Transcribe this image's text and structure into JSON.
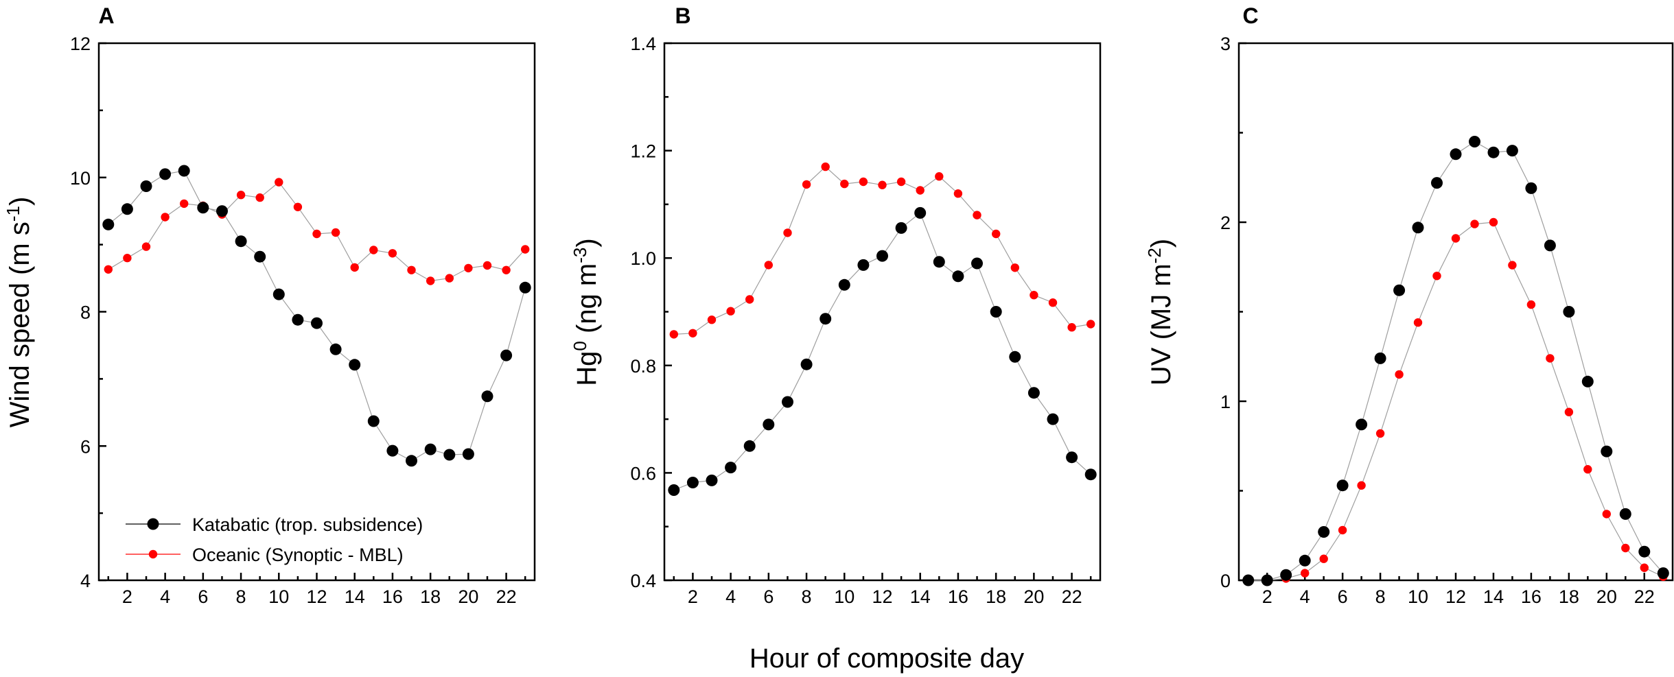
{
  "figure": {
    "shared_xlabel": "Hour of composite day"
  },
  "legend": {
    "entries": [
      {
        "label": "Katabatic (trop. subsidence)",
        "color": "#000000"
      },
      {
        "label": "Oceanic (Synoptic - MBL)",
        "color": "#ff0000"
      }
    ]
  },
  "chart_data": [
    {
      "panel": "A",
      "type": "line",
      "ylabel_main": "Wind speed (m s",
      "ylabel_sup": "-1",
      "ylabel_end": ")",
      "xlim": [
        0.5,
        23.5
      ],
      "ylim": [
        4,
        12
      ],
      "yticks": [
        4,
        6,
        8,
        10,
        12
      ],
      "yticks_labels": [
        "4",
        "6",
        "8",
        "10",
        "12"
      ],
      "xticks": [
        2,
        4,
        6,
        8,
        10,
        12,
        14,
        16,
        18,
        20,
        22
      ],
      "xticks_labels": [
        "2",
        "4",
        "6",
        "8",
        "10",
        "12",
        "14",
        "16",
        "18",
        "20",
        "22"
      ],
      "x": [
        1,
        2,
        3,
        4,
        5,
        6,
        7,
        8,
        9,
        10,
        11,
        12,
        13,
        14,
        15,
        16,
        17,
        18,
        19,
        20,
        21,
        22,
        23
      ],
      "series": [
        {
          "name": "Katabatic (trop. subsidence)",
          "color": "#000000",
          "marker": "large",
          "values": [
            9.3,
            9.53,
            9.87,
            10.05,
            10.1,
            9.55,
            9.5,
            9.05,
            8.82,
            8.26,
            7.88,
            7.83,
            7.44,
            7.21,
            6.37,
            5.93,
            5.78,
            5.95,
            5.87,
            5.88,
            6.74,
            7.35,
            8.36
          ]
        },
        {
          "name": "Oceanic (Synoptic - MBL)",
          "color": "#ff0000",
          "marker": "small",
          "values": [
            8.63,
            8.8,
            8.97,
            9.41,
            9.61,
            9.58,
            9.45,
            9.74,
            9.7,
            9.93,
            9.56,
            9.16,
            9.18,
            8.66,
            8.92,
            8.87,
            8.62,
            8.46,
            8.5,
            8.65,
            8.69,
            8.62,
            8.93
          ]
        }
      ]
    },
    {
      "panel": "B",
      "type": "line",
      "ylabel_main": "Hg",
      "ylabel_sup": "0",
      "ylabel_mid": " (ng m",
      "ylabel_sup2": "-3",
      "ylabel_end": ")",
      "xlim": [
        0.5,
        23.5
      ],
      "ylim": [
        0.4,
        1.4
      ],
      "yticks": [
        0.4,
        0.6,
        0.8,
        1.0,
        1.2,
        1.4
      ],
      "yticks_labels": [
        "0.4",
        "0.6",
        "0.8",
        "1.0",
        "1.2",
        "1.4"
      ],
      "xticks": [
        2,
        4,
        6,
        8,
        10,
        12,
        14,
        16,
        18,
        20,
        22
      ],
      "xticks_labels": [
        "2",
        "4",
        "6",
        "8",
        "10",
        "12",
        "14",
        "16",
        "18",
        "20",
        "22"
      ],
      "x": [
        1,
        2,
        3,
        4,
        5,
        6,
        7,
        8,
        9,
        10,
        11,
        12,
        13,
        14,
        15,
        16,
        17,
        18,
        19,
        20,
        21,
        22,
        23
      ],
      "series": [
        {
          "name": "Katabatic (trop. subsidence)",
          "color": "#000000",
          "marker": "large",
          "values": [
            0.568,
            0.582,
            0.586,
            0.61,
            0.65,
            0.69,
            0.732,
            0.802,
            0.887,
            0.95,
            0.987,
            1.004,
            1.056,
            1.084,
            0.993,
            0.966,
            0.99,
            0.9,
            0.816,
            0.749,
            0.7,
            0.629,
            0.597
          ]
        },
        {
          "name": "Oceanic (Synoptic - MBL)",
          "color": "#ff0000",
          "marker": "small",
          "values": [
            0.858,
            0.86,
            0.885,
            0.901,
            0.923,
            0.987,
            1.047,
            1.137,
            1.17,
            1.138,
            1.142,
            1.136,
            1.142,
            1.126,
            1.152,
            1.12,
            1.08,
            1.045,
            0.982,
            0.931,
            0.917,
            0.871,
            0.877
          ]
        }
      ]
    },
    {
      "panel": "C",
      "type": "line",
      "ylabel_main": "UV (MJ m",
      "ylabel_sup": "-2",
      "ylabel_end": ")",
      "xlim": [
        0.5,
        23.5
      ],
      "ylim": [
        0,
        3
      ],
      "yticks": [
        0,
        1,
        2,
        3
      ],
      "yticks_labels": [
        "0",
        "1",
        "2",
        "3"
      ],
      "xticks": [
        2,
        4,
        6,
        8,
        10,
        12,
        14,
        16,
        18,
        20,
        22
      ],
      "xticks_labels": [
        "2",
        "4",
        "6",
        "8",
        "10",
        "12",
        "14",
        "16",
        "18",
        "20",
        "22"
      ],
      "x": [
        1,
        2,
        3,
        4,
        5,
        6,
        7,
        8,
        9,
        10,
        11,
        12,
        13,
        14,
        15,
        16,
        17,
        18,
        19,
        20,
        21,
        22,
        23
      ],
      "series": [
        {
          "name": "Katabatic (trop. subsidence)",
          "color": "#000000",
          "marker": "large",
          "values": [
            0.0,
            0.0,
            0.03,
            0.11,
            0.27,
            0.53,
            0.87,
            1.24,
            1.62,
            1.97,
            2.22,
            2.38,
            2.45,
            2.39,
            2.4,
            2.19,
            1.87,
            1.5,
            1.11,
            0.72,
            0.37,
            0.16,
            0.04
          ]
        },
        {
          "name": "Oceanic (Synoptic - MBL)",
          "color": "#ff0000",
          "marker": "small",
          "values": [
            0.0,
            0.0,
            0.01,
            0.04,
            0.12,
            0.28,
            0.53,
            0.82,
            1.15,
            1.44,
            1.7,
            1.91,
            1.99,
            2.0,
            1.76,
            1.54,
            1.24,
            0.94,
            0.62,
            0.37,
            0.18,
            0.07,
            0.02
          ]
        }
      ]
    }
  ]
}
